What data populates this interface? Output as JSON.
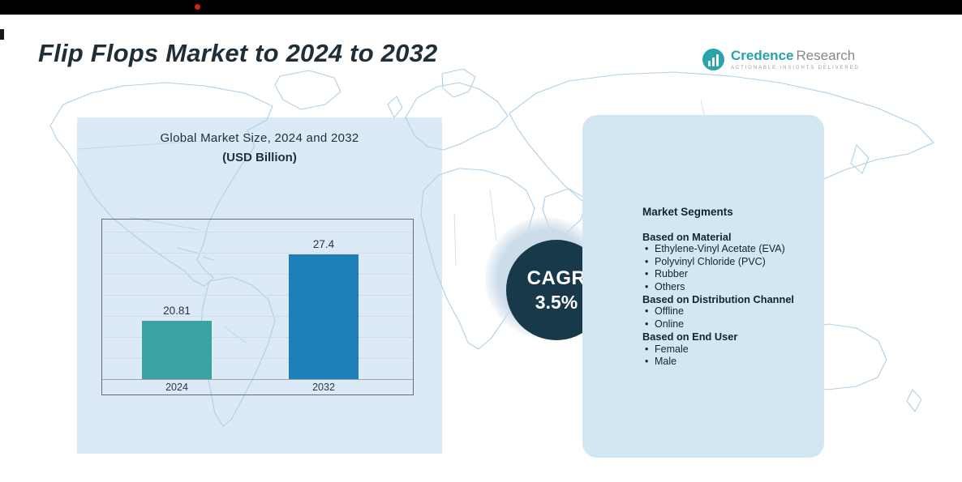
{
  "header": {
    "title": "Flip Flops Market to 2024 to 2032",
    "logo": {
      "brand_primary": "Credence",
      "brand_secondary": "Research",
      "tagline": "Actionable Insights Delivered"
    }
  },
  "chart_panel": {
    "title_line1": "Global Market Size, 2024 and 2032",
    "title_line2": "(USD Billion)"
  },
  "chart_data": {
    "type": "bar",
    "title": "Global Market Size, 2024 and 2032 (USD Billion)",
    "categories": [
      "2024",
      "2032"
    ],
    "values": [
      20.81,
      27.4
    ],
    "value_labels": [
      "20.81",
      "27.4"
    ],
    "bar_colors": [
      "#3ba3a1",
      "#1c7fb5"
    ],
    "xlabel": "",
    "ylabel": "",
    "ylim": [
      15,
      30
    ],
    "grid": true,
    "legend": false
  },
  "cagr": {
    "label": "CAGR",
    "value": "3.5%"
  },
  "segments_panel": {
    "title": "Market Segments",
    "groups": [
      {
        "heading": "Based on Material",
        "items": [
          "Ethylene-Vinyl Acetate (EVA)",
          "Polyvinyl Chloride (PVC)",
          "Rubber",
          "Others"
        ]
      },
      {
        "heading": "Based on Distribution Channel",
        "items": [
          "Offline",
          "Online"
        ]
      },
      {
        "heading": "Based on End User",
        "items": [
          "Female",
          "Male"
        ]
      }
    ]
  },
  "colors": {
    "top_bar": "#000000",
    "accent_dot": "#cf2318",
    "title_text": "#1f2e37",
    "left_panel_bg": "#dce9f6",
    "right_panel_bg": "#d3e6f4",
    "map_line": "#afd0e6",
    "cagr_circle": "#17394a",
    "brand_teal": "#26a3a5",
    "brand_gray": "#84898d"
  }
}
